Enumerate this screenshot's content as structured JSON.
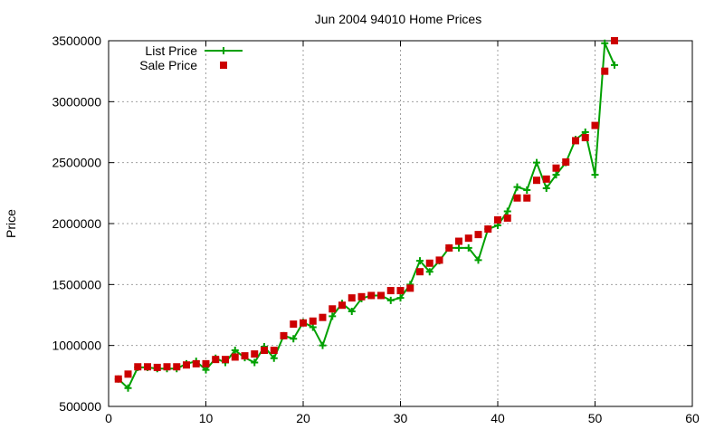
{
  "chart_data": {
    "type": "line",
    "title": "Jun 2004 94010 Home Prices",
    "xlabel": "",
    "ylabel": "Price",
    "xlim": [
      0,
      60
    ],
    "ylim": [
      500000,
      3500000
    ],
    "x_ticks": [
      "0",
      "10",
      "20",
      "30",
      "40",
      "50",
      "60"
    ],
    "y_ticks": [
      "500000",
      "1000000",
      "1500000",
      "2000000",
      "2500000",
      "3000000",
      "3500000"
    ],
    "grid": true,
    "legend_position": "top-left",
    "x": [
      1,
      2,
      3,
      4,
      5,
      6,
      7,
      8,
      9,
      10,
      11,
      12,
      13,
      14,
      15,
      16,
      17,
      18,
      19,
      20,
      21,
      22,
      23,
      24,
      25,
      26,
      27,
      28,
      29,
      30,
      31,
      32,
      33,
      34,
      35,
      36,
      37,
      38,
      39,
      40,
      41,
      42,
      43,
      44,
      45,
      46,
      47,
      48,
      49,
      50,
      51,
      52
    ],
    "series": [
      {
        "name": "List Price",
        "style": "linespoints",
        "color": "#00a000",
        "values": [
          725000,
          650000,
          820000,
          820000,
          810000,
          810000,
          810000,
          850000,
          870000,
          800000,
          895000,
          860000,
          960000,
          900000,
          860000,
          990000,
          895000,
          1080000,
          1055000,
          1190000,
          1150000,
          1000000,
          1240000,
          1345000,
          1280000,
          1385000,
          1410000,
          1410000,
          1370000,
          1390000,
          1500000,
          1695000,
          1605000,
          1695000,
          1800000,
          1800000,
          1800000,
          1700000,
          1955000,
          1985000,
          2100000,
          2300000,
          2275000,
          2500000,
          2290000,
          2400000,
          2500000,
          2690000,
          2750000,
          2400000,
          3480000,
          3300000
        ]
      },
      {
        "name": "Sale Price",
        "style": "points",
        "color": "#cc0000",
        "values": [
          725000,
          765000,
          825000,
          825000,
          820000,
          825000,
          825000,
          840000,
          850000,
          850000,
          885000,
          885000,
          905000,
          915000,
          930000,
          960000,
          960000,
          1080000,
          1175000,
          1185000,
          1200000,
          1230000,
          1300000,
          1330000,
          1390000,
          1400000,
          1410000,
          1410000,
          1450000,
          1450000,
          1470000,
          1605000,
          1675000,
          1700000,
          1800000,
          1855000,
          1880000,
          1910000,
          1955000,
          2030000,
          2045000,
          2210000,
          2210000,
          2355000,
          2365000,
          2455000,
          2505000,
          2680000,
          2705000,
          2805000,
          3250000,
          3500000
        ]
      }
    ]
  }
}
